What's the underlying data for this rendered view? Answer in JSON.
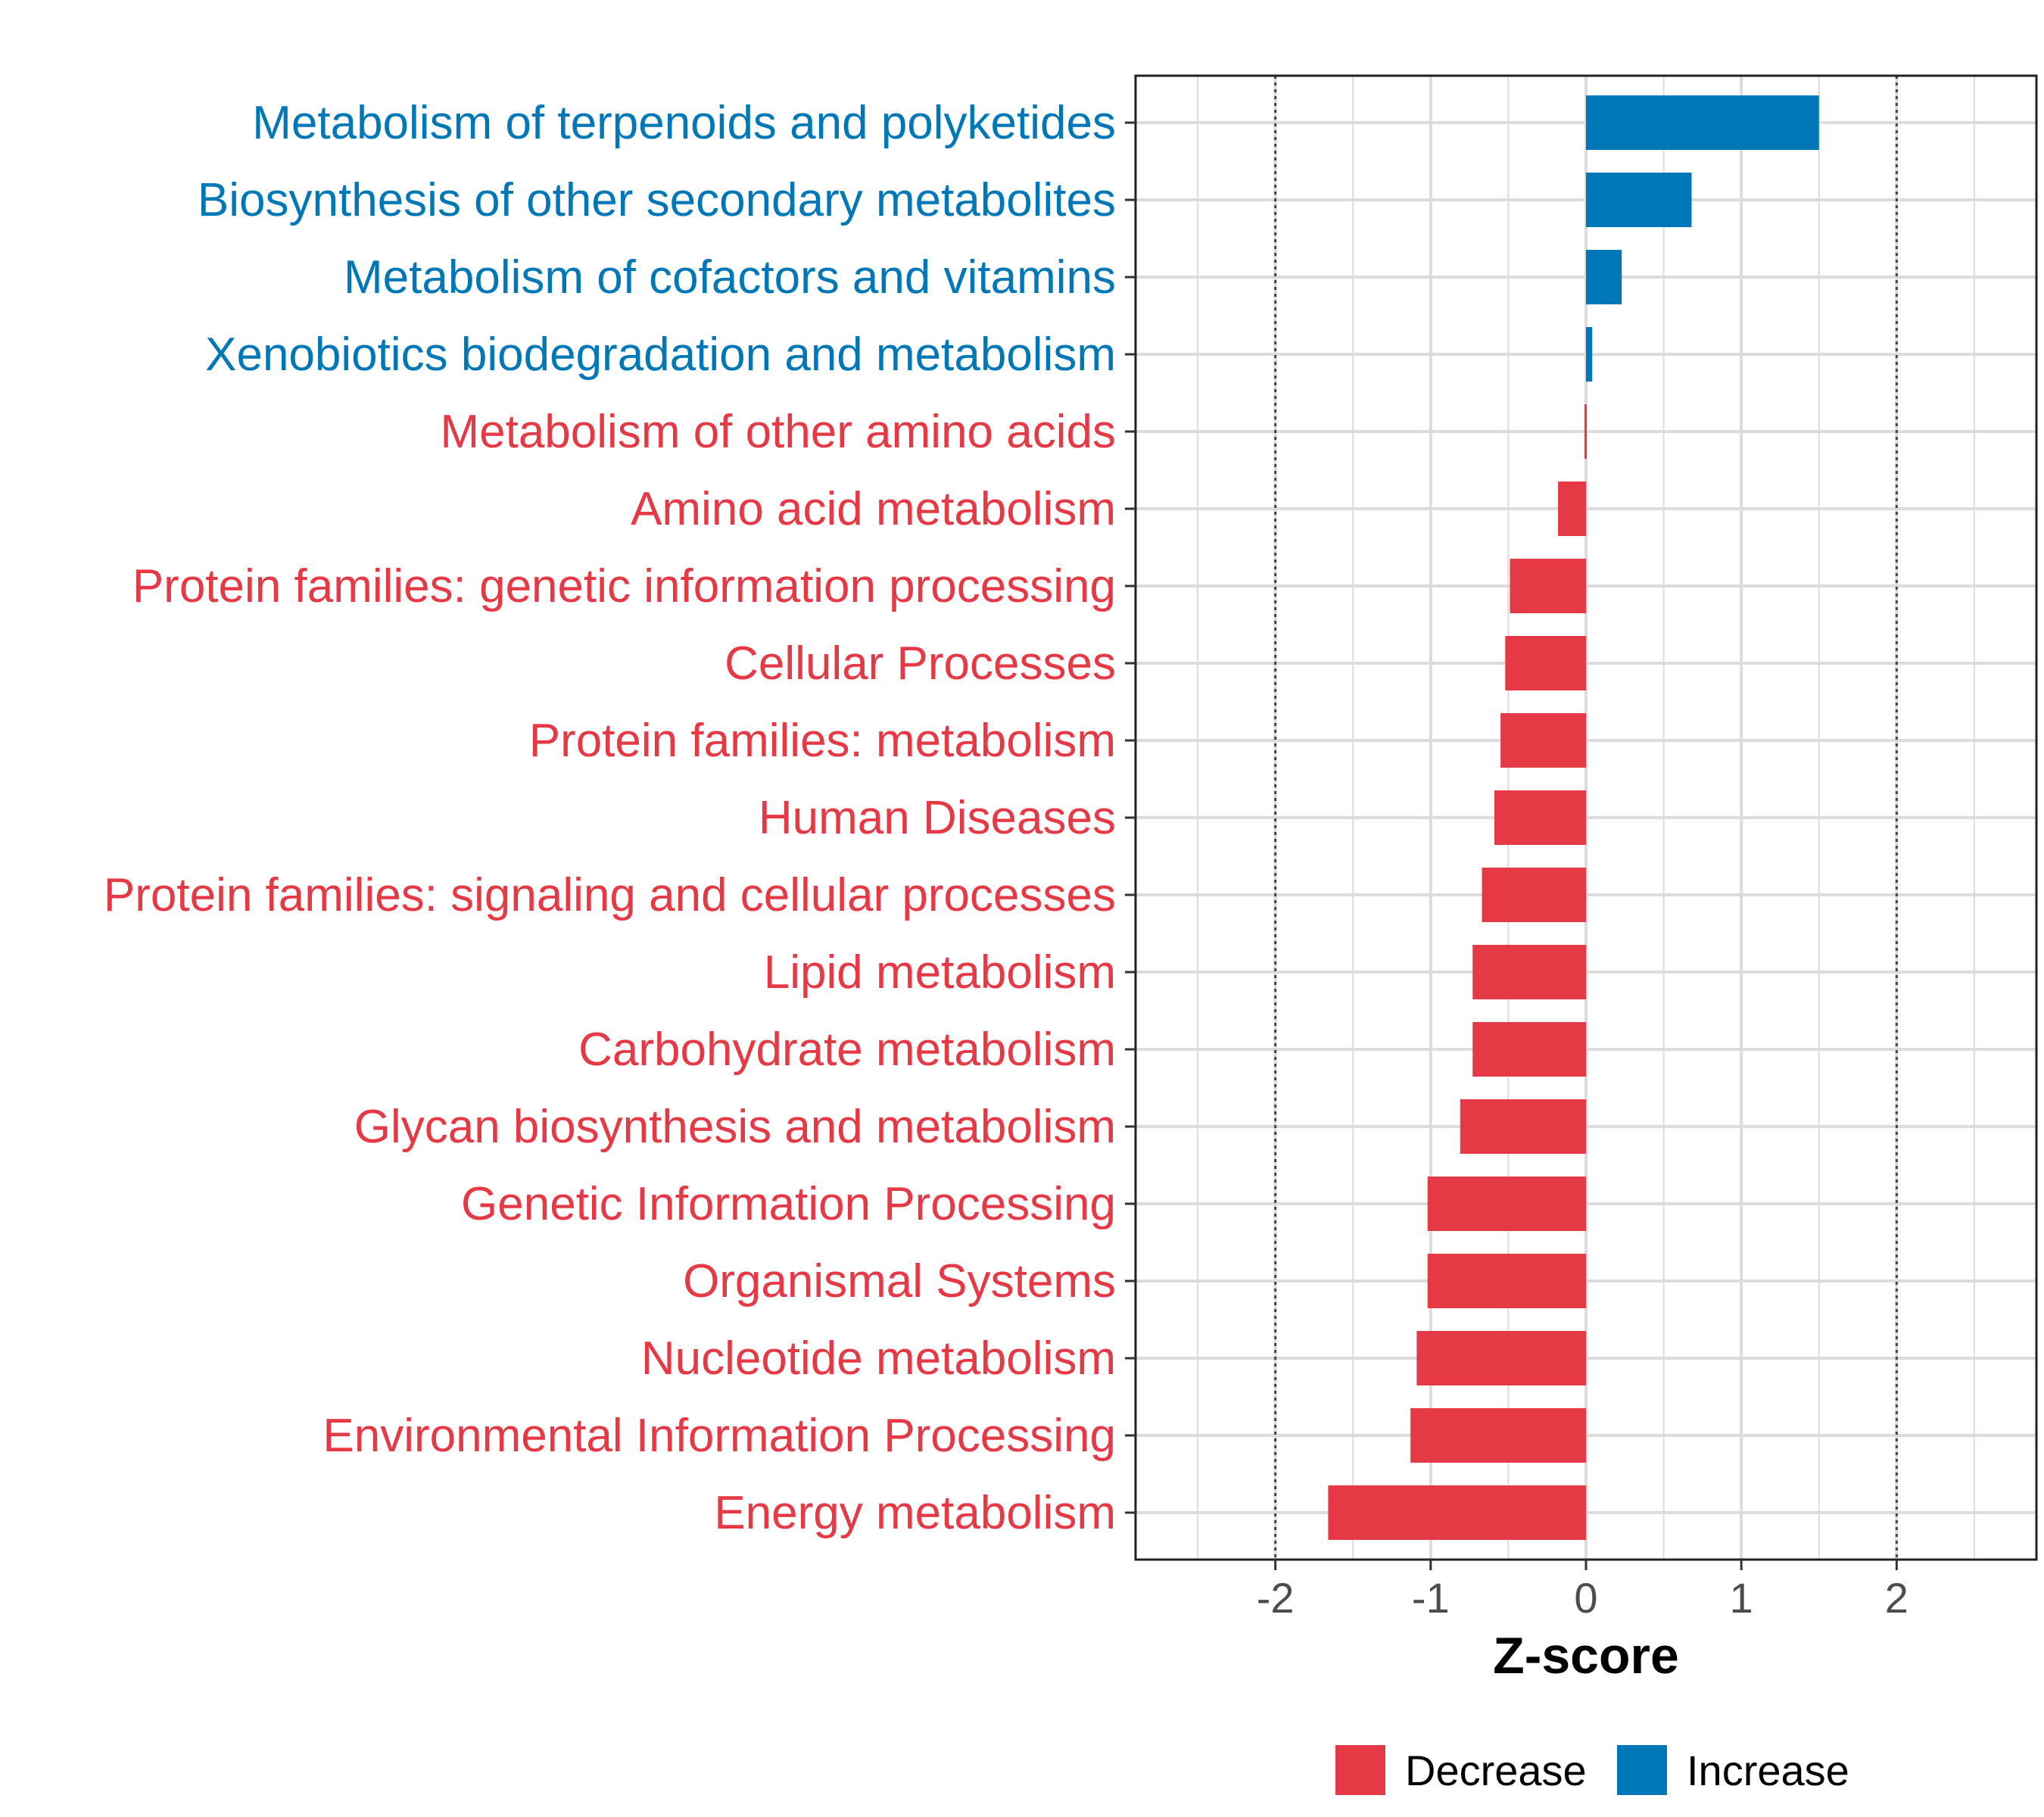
{
  "chart_data": {
    "type": "bar",
    "orientation": "horizontal",
    "xlabel": "Z-score",
    "xlim": [
      -2.9,
      2.9
    ],
    "xticks": [
      -2,
      -1,
      0,
      1,
      2
    ],
    "tick_labels": [
      "-2",
      "-1",
      "0",
      "1",
      "2"
    ],
    "reference_lines": [
      -2,
      2
    ],
    "grid": true,
    "legend_position": "bottom",
    "colors": {
      "Decrease": "#e63946",
      "Increase": "#0077b6"
    },
    "legend": [
      {
        "label": "Decrease",
        "color": "#e63946"
      },
      {
        "label": "Increase",
        "color": "#0077b6"
      }
    ],
    "categories": [
      "Metabolism of terpenoids and polyketides",
      "Biosynthesis of other secondary metabolites",
      "Metabolism of cofactors and vitamins",
      "Xenobiotics biodegradation and metabolism",
      "Metabolism of other amino acids",
      "Amino acid metabolism",
      "Protein families: genetic information processing",
      "Cellular Processes",
      "Protein families: metabolism",
      "Human Diseases",
      "Protein families: signaling and cellular processes",
      "Lipid metabolism",
      "Carbohydrate metabolism",
      "Glycan biosynthesis and metabolism",
      "Genetic Information Processing",
      "Organismal Systems",
      "Nucleotide metabolism",
      "Environmental Information Processing",
      "Energy metabolism"
    ],
    "values": [
      1.5,
      0.68,
      0.23,
      0.04,
      -0.01,
      -0.18,
      -0.49,
      -0.52,
      -0.55,
      -0.59,
      -0.67,
      -0.73,
      -0.73,
      -0.81,
      -1.02,
      -1.02,
      -1.09,
      -1.13,
      -1.66
    ],
    "groups": [
      "Increase",
      "Increase",
      "Increase",
      "Increase",
      "Decrease",
      "Decrease",
      "Decrease",
      "Decrease",
      "Decrease",
      "Decrease",
      "Decrease",
      "Decrease",
      "Decrease",
      "Decrease",
      "Decrease",
      "Decrease",
      "Decrease",
      "Decrease",
      "Decrease"
    ]
  }
}
